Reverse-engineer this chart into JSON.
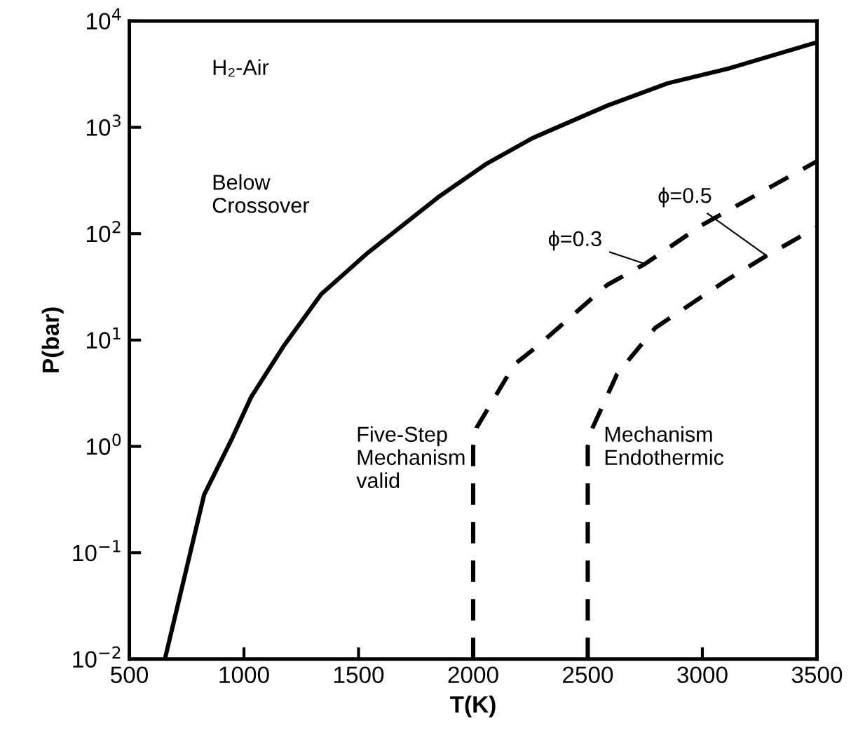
{
  "chart_data": {
    "type": "line",
    "xlabel": "T(K)",
    "ylabel": "P(bar)",
    "log": "y",
    "xlim": [
      500,
      3500
    ],
    "xticks": [
      500,
      1000,
      1500,
      2000,
      2500,
      3000,
      3500
    ],
    "ylim": [
      0.01,
      10000
    ],
    "yticks": [
      {
        "value": 0.01,
        "label": "10$^{−2}$"
      },
      {
        "value": 0.1,
        "label": "10$^{−1}$"
      },
      {
        "value": 1,
        "label": "10$^{0}$"
      },
      {
        "value": 10,
        "label": "10$^{1}$"
      },
      {
        "value": 100,
        "label": "10$^{2}$"
      },
      {
        "value": 1000,
        "label": "10$^{3}$"
      },
      {
        "value": 10000,
        "label": "10$^{4}$"
      }
    ],
    "grid": false,
    "legend": false,
    "marker": "none",
    "series": [
      {
        "color": "#000000",
        "line_style": "solid",
        "x": [
          655,
          826,
          949,
          1031,
          1172,
          1337,
          1540,
          1847,
          2055,
          2258,
          2585,
          2850,
          3120,
          3500
        ],
        "values": [
          0.01,
          0.35,
          1.2,
          2.9,
          8.7,
          27,
          66,
          220,
          450,
          790,
          1600,
          2600,
          3600,
          6300
        ]
      },
      {
        "name": "ϕ=0.3",
        "color": "#000000",
        "line_style": "dashed",
        "x": [
          2000,
          2000,
          2015,
          2180,
          2279,
          2585,
          2750,
          2997,
          3304,
          3500
        ],
        "values": [
          0.01,
          1,
          1.5,
          5.9,
          8.7,
          33,
          52,
          120,
          280,
          480
        ]
      },
      {
        "name": "ϕ=0.5",
        "color": "#000000",
        "line_style": "dashed",
        "x": [
          2500,
          2500,
          2515,
          2628,
          2794,
          3101,
          3280,
          3500
        ],
        "values": [
          0.01,
          1,
          1.4,
          4.8,
          13,
          36,
          62,
          115
        ]
      }
    ],
    "annotations": [
      "H₂-Air",
      "Below Crossover",
      "Five-Step Mechanism valid",
      "Mechanism Endothermic"
    ]
  }
}
